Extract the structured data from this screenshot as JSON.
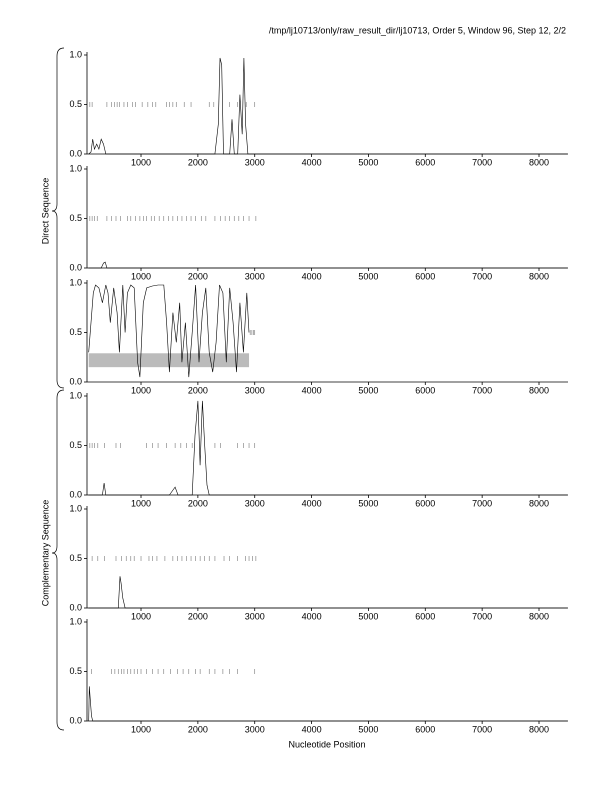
{
  "title": "/tmp/lj10713/only/raw_result_dir/lj10713, Order 5, Window 96, Step 12, 2/2",
  "xlabel": "Nucleotide Position",
  "groups": [
    "Direct Sequence",
    "Complementary Sequence"
  ],
  "chart_data": [
    {
      "type": "line",
      "xlim": [
        50,
        8510
      ],
      "ylim": [
        0,
        1
      ],
      "xticks": [
        1000,
        2000,
        3000,
        4000,
        5000,
        6000,
        7000,
        8000
      ],
      "yticks": [
        {
          "value": 0,
          "label": "0.0"
        },
        {
          "value": 0.5,
          "label": "0.5"
        },
        {
          "value": 1,
          "label": "1.0"
        }
      ],
      "x": [
        80,
        120,
        150,
        180,
        220,
        260,
        300,
        340,
        380,
        600,
        2300,
        2360,
        2390,
        2420,
        2450,
        2560,
        2600,
        2640,
        2700,
        2740,
        2780,
        2810,
        2840,
        2880,
        3000,
        8500
      ],
      "values": [
        0,
        0.02,
        0.15,
        0.05,
        0.1,
        0.05,
        0.15,
        0.1,
        0,
        0,
        0,
        0.3,
        0.97,
        0.9,
        0,
        0,
        0.35,
        0,
        0,
        0.6,
        0.2,
        0.97,
        0.3,
        0,
        0,
        0
      ],
      "stops": [
        100,
        140,
        400,
        480,
        530,
        580,
        620,
        700,
        760,
        850,
        900,
        1020,
        1120,
        1200,
        1260,
        1450,
        1500,
        1560,
        1620,
        1760,
        1880,
        2200,
        2280,
        2560,
        2700,
        2850,
        3000
      ]
    },
    {
      "type": "line",
      "xlim": [
        50,
        8510
      ],
      "ylim": [
        0,
        1
      ],
      "xticks": [
        1000,
        2000,
        3000,
        4000,
        5000,
        6000,
        7000,
        8000
      ],
      "yticks": [
        {
          "value": 0,
          "label": "0.0"
        },
        {
          "value": 0.5,
          "label": "0.5"
        },
        {
          "value": 1,
          "label": "1.0"
        }
      ],
      "x": [
        80,
        300,
        340,
        370,
        400,
        8500
      ],
      "values": [
        0,
        0,
        0.05,
        0.06,
        0,
        0
      ],
      "stops": [
        100,
        140,
        180,
        230,
        400,
        480,
        560,
        640,
        760,
        820,
        900,
        980,
        1040,
        1100,
        1180,
        1240,
        1320,
        1400,
        1480,
        1560,
        1640,
        1720,
        1800,
        1880,
        1960,
        2060,
        2140,
        2300,
        2400,
        2480,
        2560,
        2640,
        2720,
        2800,
        2900,
        3020
      ]
    },
    {
      "type": "line",
      "xlim": [
        50,
        8510
      ],
      "ylim": [
        0,
        1
      ],
      "xticks": [
        1000,
        2000,
        3000,
        4000,
        5000,
        6000,
        7000,
        8000
      ],
      "yticks": [
        {
          "value": 0,
          "label": "0.0"
        },
        {
          "value": 0.5,
          "label": "0.5"
        },
        {
          "value": 1,
          "label": "1.0"
        }
      ],
      "x": [
        80,
        120,
        160,
        200,
        260,
        320,
        380,
        420,
        460,
        520,
        580,
        620,
        680,
        720,
        760,
        820,
        880,
        940,
        980,
        1040,
        1100,
        1200,
        1300,
        1400,
        1450,
        1500,
        1560,
        1620,
        1680,
        1720,
        1780,
        1840,
        1900,
        1960,
        2020,
        2080,
        2140,
        2200,
        2260,
        2320,
        2380,
        2440,
        2500,
        2560,
        2620,
        2680,
        2740,
        2800,
        2860,
        2900
      ],
      "values": [
        0.3,
        0.6,
        0.9,
        0.98,
        0.95,
        0.8,
        0.98,
        0.9,
        0.6,
        0.95,
        0.7,
        0.3,
        0.98,
        0.5,
        0.9,
        0.98,
        0.95,
        0.2,
        0.05,
        0.8,
        0.95,
        0.97,
        0.98,
        0.98,
        0.6,
        0.1,
        0.7,
        0.4,
        0.8,
        0.2,
        0.6,
        0.05,
        0.5,
        0.98,
        0.2,
        0.7,
        0.95,
        0.3,
        0.1,
        0.4,
        0.98,
        0.9,
        0.2,
        0.95,
        0.6,
        0.1,
        0.8,
        0.3,
        0.9,
        0.5
      ],
      "stops": [
        2920,
        2950,
        2980,
        3000
      ],
      "region": {
        "start": 80,
        "end": 2900,
        "low": 0.15,
        "high": 0.29
      }
    },
    {
      "type": "line",
      "xlim": [
        50,
        8510
      ],
      "ylim": [
        0,
        1
      ],
      "xticks": [
        1000,
        2000,
        3000,
        4000,
        5000,
        6000,
        7000,
        8000
      ],
      "yticks": [
        {
          "value": 0,
          "label": "0.0"
        },
        {
          "value": 0.5,
          "label": "0.5"
        },
        {
          "value": 1,
          "label": "1.0"
        }
      ],
      "x": [
        80,
        320,
        350,
        380,
        1500,
        1600,
        1650,
        1900,
        1950,
        2000,
        2040,
        2080,
        2120,
        2160,
        2200,
        8500
      ],
      "values": [
        0,
        0,
        0.12,
        0,
        0,
        0.08,
        0,
        0,
        0.6,
        0.95,
        0.3,
        0.95,
        0.5,
        0.1,
        0,
        0
      ],
      "stops": [
        100,
        140,
        180,
        240,
        360,
        560,
        640,
        1100,
        1200,
        1300,
        1450,
        1600,
        1700,
        1800,
        1900,
        2300,
        2400,
        2700,
        2800,
        2900,
        3000
      ]
    },
    {
      "type": "line",
      "xlim": [
        50,
        8510
      ],
      "ylim": [
        0,
        1
      ],
      "xticks": [
        1000,
        2000,
        3000,
        4000,
        5000,
        6000,
        7000,
        8000
      ],
      "yticks": [
        {
          "value": 0,
          "label": "0.0"
        },
        {
          "value": 0.5,
          "label": "0.5"
        },
        {
          "value": 1,
          "label": "1.0"
        }
      ],
      "x": [
        80,
        600,
        630,
        650,
        680,
        720,
        8500
      ],
      "values": [
        0,
        0,
        0.32,
        0.25,
        0.1,
        0,
        0
      ],
      "stops": [
        140,
        240,
        360,
        560,
        660,
        740,
        820,
        880,
        1000,
        1140,
        1200,
        1280,
        1420,
        1560,
        1640,
        1720,
        1800,
        1880,
        1960,
        2040,
        2120,
        2200,
        2300,
        2460,
        2560,
        2700,
        2840,
        2900,
        2960,
        3020
      ]
    },
    {
      "type": "line",
      "xlim": [
        50,
        8510
      ],
      "ylim": [
        0,
        1
      ],
      "xticks": [
        1000,
        2000,
        3000,
        4000,
        5000,
        6000,
        7000,
        8000
      ],
      "yticks": [
        {
          "value": 0,
          "label": "0.0"
        },
        {
          "value": 0.5,
          "label": "0.5"
        },
        {
          "value": 1,
          "label": "1.0"
        }
      ],
      "x": [
        80,
        90,
        110,
        130,
        150,
        8500
      ],
      "values": [
        0,
        0.35,
        0.2,
        0.05,
        0,
        0
      ],
      "stops": [
        130,
        480,
        540,
        600,
        660,
        700,
        760,
        820,
        880,
        940,
        1000,
        1100,
        1200,
        1300,
        1400,
        1520,
        1640,
        1740,
        1840,
        1960,
        2040,
        2200,
        2300,
        2440,
        2560,
        2700,
        3000
      ]
    }
  ]
}
